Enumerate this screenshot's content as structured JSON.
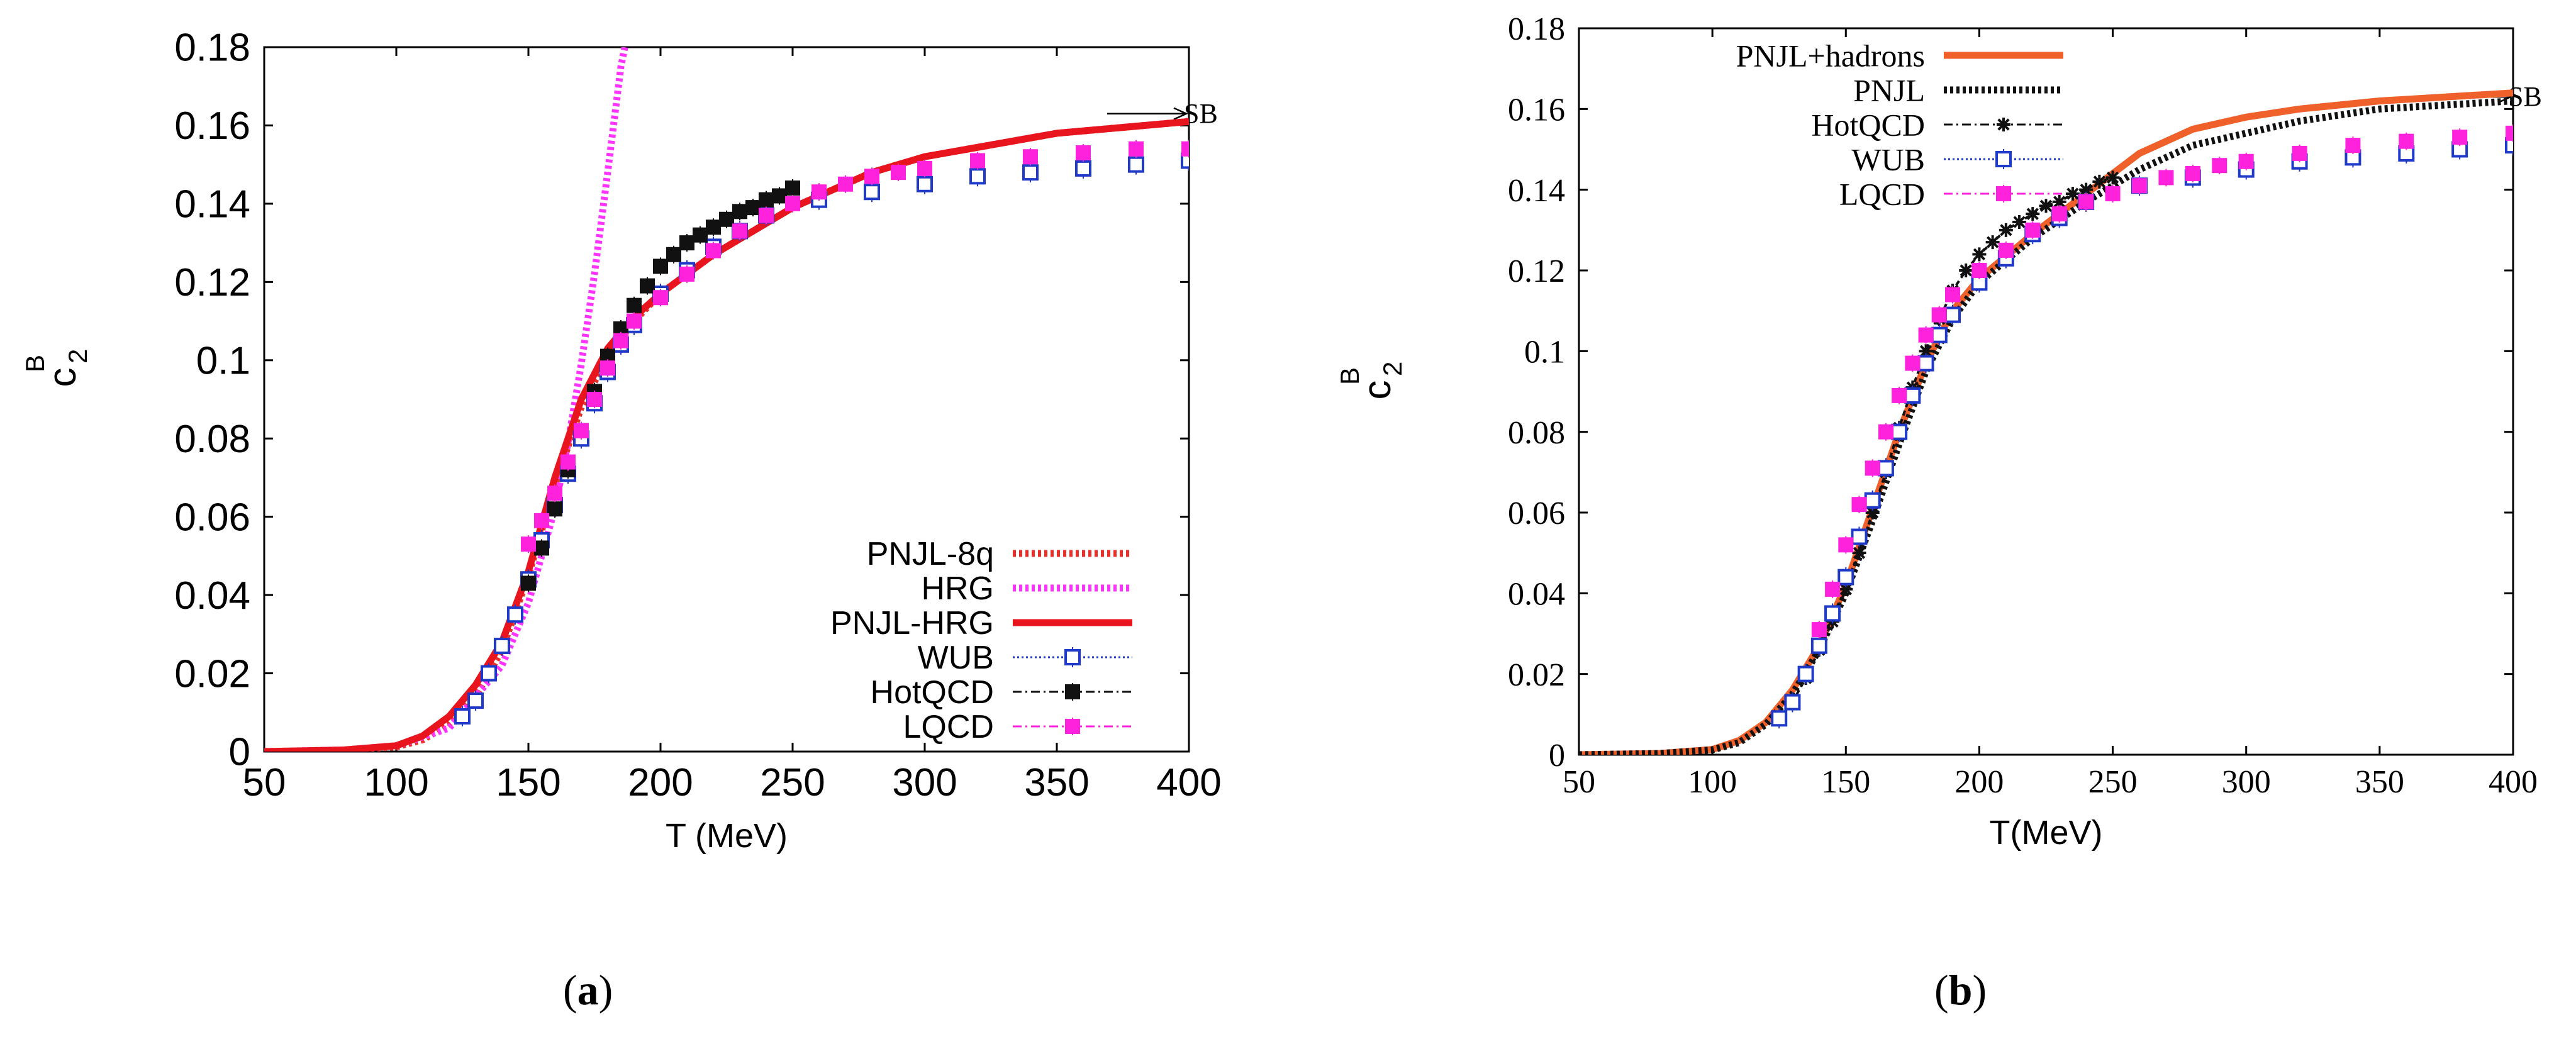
{
  "captions": {
    "a": "a",
    "b": "b",
    "open": "(",
    "close": ")"
  },
  "chart_data": [
    {
      "id": "a",
      "type": "line",
      "title": "",
      "xlabel": "T (MeV)",
      "ylabel_main": "c",
      "ylabel_sub": "2",
      "ylabel_sup": "B",
      "xlim": [
        50,
        400
      ],
      "ylim": [
        0,
        0.18
      ],
      "xticks": [
        50,
        100,
        150,
        200,
        250,
        300,
        350,
        400
      ],
      "yticks": [
        0,
        0.02,
        0.04,
        0.06,
        0.08,
        0.1,
        0.12,
        0.14,
        0.16,
        0.18
      ],
      "ytick_labels": [
        "0",
        "0.02",
        "0.04",
        "0.06",
        "0.08",
        "0.1",
        "0.12",
        "0.14",
        "0.16",
        "0.18"
      ],
      "legend_position": "bottom-right",
      "annotation": {
        "text": "SB",
        "x": 400,
        "y": 0.163
      },
      "series": [
        {
          "name": "PNJL-8q",
          "kind": "line",
          "style": "dotted-thick",
          "color": "#e8312a",
          "x": [
            50,
            80,
            100,
            110,
            120,
            130,
            140,
            150,
            160,
            170,
            180,
            190,
            200,
            220,
            250,
            280,
            300,
            350,
            400
          ],
          "y": [
            0,
            0.0003,
            0.0012,
            0.003,
            0.007,
            0.014,
            0.026,
            0.045,
            0.068,
            0.088,
            0.101,
            0.11,
            0.117,
            0.127,
            0.139,
            0.148,
            0.152,
            0.158,
            0.161
          ]
        },
        {
          "name": "HRG",
          "kind": "line",
          "style": "dotted-thick",
          "color": "#ff33ff",
          "x": [
            50,
            80,
            100,
            120,
            140,
            150,
            160,
            165,
            170,
            175,
            180,
            185,
            188
          ],
          "y": [
            0,
            0.0004,
            0.0015,
            0.006,
            0.022,
            0.038,
            0.062,
            0.079,
            0.099,
            0.122,
            0.148,
            0.175,
            0.185
          ]
        },
        {
          "name": "PNJL-HRG",
          "kind": "line",
          "style": "solid",
          "color": "#e8151e",
          "x": [
            50,
            80,
            100,
            110,
            120,
            130,
            140,
            150,
            155,
            160,
            170,
            180,
            190,
            200,
            220,
            250,
            280,
            300,
            350,
            400
          ],
          "y": [
            0,
            0.0004,
            0.0015,
            0.004,
            0.009,
            0.017,
            0.028,
            0.046,
            0.058,
            0.07,
            0.09,
            0.103,
            0.111,
            0.117,
            0.127,
            0.139,
            0.148,
            0.152,
            0.158,
            0.161
          ]
        },
        {
          "name": "WUB",
          "kind": "markers",
          "marker": "open-square",
          "color": "#1f3ac8",
          "x": [
            125,
            130,
            135,
            140,
            145,
            150,
            155,
            160,
            165,
            170,
            175,
            180,
            185,
            190,
            200,
            210,
            220,
            230,
            240,
            260,
            280,
            300,
            320,
            340,
            360,
            380,
            400
          ],
          "y": [
            0.009,
            0.013,
            0.02,
            0.027,
            0.035,
            0.044,
            0.054,
            0.063,
            0.071,
            0.08,
            0.089,
            0.097,
            0.104,
            0.109,
            0.117,
            0.123,
            0.129,
            0.133,
            0.137,
            0.141,
            0.143,
            0.145,
            0.147,
            0.148,
            0.149,
            0.15,
            0.151
          ]
        },
        {
          "name": "HotQCD",
          "kind": "markers",
          "marker": "filled-square",
          "color": "#111111",
          "x": [
            150,
            155,
            160,
            165,
            170,
            175,
            180,
            185,
            190,
            195,
            200,
            205,
            210,
            215,
            220,
            225,
            230,
            235,
            240,
            245,
            250
          ],
          "y": [
            0.043,
            0.052,
            0.062,
            0.072,
            0.082,
            0.092,
            0.101,
            0.108,
            0.114,
            0.119,
            0.124,
            0.127,
            0.13,
            0.132,
            0.134,
            0.136,
            0.138,
            0.139,
            0.141,
            0.142,
            0.144
          ]
        },
        {
          "name": "LQCD",
          "kind": "markers",
          "marker": "filled-square",
          "color": "#ff22dd",
          "x": [
            150,
            155,
            160,
            165,
            170,
            175,
            180,
            185,
            190,
            200,
            210,
            220,
            230,
            240,
            250,
            260,
            270,
            280,
            290,
            300,
            320,
            340,
            360,
            380,
            400
          ],
          "y": [
            0.053,
            0.059,
            0.066,
            0.074,
            0.082,
            0.09,
            0.098,
            0.105,
            0.11,
            0.116,
            0.122,
            0.128,
            0.133,
            0.137,
            0.14,
            0.143,
            0.145,
            0.147,
            0.148,
            0.149,
            0.151,
            0.152,
            0.153,
            0.154,
            0.154
          ]
        }
      ]
    },
    {
      "id": "b",
      "type": "line",
      "title": "",
      "xlabel": "T(MeV)",
      "ylabel_main": "c",
      "ylabel_sub": "2",
      "ylabel_sup": "B",
      "xlim": [
        50,
        400
      ],
      "ylim": [
        0,
        0.18
      ],
      "xticks": [
        50,
        100,
        150,
        200,
        250,
        300,
        350,
        400
      ],
      "yticks": [
        0,
        0.02,
        0.04,
        0.06,
        0.08,
        0.1,
        0.12,
        0.14,
        0.16,
        0.18
      ],
      "ytick_labels": [
        "0",
        "0.02",
        "0.04",
        "0.06",
        "0.08",
        "0.1",
        "0.12",
        "0.14",
        "0.16",
        "0.18"
      ],
      "legend_position": "top-left",
      "annotation": {
        "text": "SB",
        "x": 400,
        "y": 0.163
      },
      "series": [
        {
          "name": "PNJL+hadrons",
          "kind": "line",
          "style": "solid",
          "color": "#f0602a",
          "x": [
            50,
            80,
            100,
            110,
            120,
            130,
            140,
            150,
            160,
            170,
            180,
            190,
            200,
            220,
            240,
            250,
            260,
            280,
            300,
            320,
            350,
            400
          ],
          "y": [
            0,
            0.0003,
            0.0013,
            0.0035,
            0.008,
            0.016,
            0.027,
            0.042,
            0.061,
            0.08,
            0.097,
            0.11,
            0.118,
            0.129,
            0.139,
            0.144,
            0.149,
            0.155,
            0.158,
            0.16,
            0.162,
            0.164
          ]
        },
        {
          "name": "PNJL",
          "kind": "line",
          "style": "dotted-thick",
          "color": "#111111",
          "x": [
            50,
            80,
            100,
            110,
            120,
            130,
            140,
            150,
            160,
            170,
            180,
            190,
            200,
            220,
            240,
            250,
            260,
            280,
            300,
            320,
            350,
            400
          ],
          "y": [
            0,
            0.0003,
            0.0012,
            0.003,
            0.0075,
            0.015,
            0.026,
            0.04,
            0.058,
            0.077,
            0.095,
            0.108,
            0.117,
            0.128,
            0.137,
            0.141,
            0.145,
            0.151,
            0.154,
            0.157,
            0.16,
            0.162
          ]
        },
        {
          "name": "HotQCD",
          "kind": "markers-line",
          "marker": "star",
          "color": "#111111",
          "x": [
            130,
            135,
            140,
            145,
            150,
            155,
            160,
            165,
            170,
            175,
            180,
            185,
            190,
            195,
            200,
            205,
            210,
            215,
            220,
            225,
            230,
            235,
            240,
            245,
            250
          ],
          "y": [
            0.013,
            0.019,
            0.026,
            0.033,
            0.041,
            0.05,
            0.06,
            0.07,
            0.081,
            0.091,
            0.1,
            0.108,
            0.115,
            0.12,
            0.124,
            0.127,
            0.13,
            0.132,
            0.134,
            0.136,
            0.137,
            0.139,
            0.14,
            0.142,
            0.143
          ]
        },
        {
          "name": "WUB",
          "kind": "markers",
          "marker": "open-square",
          "color": "#1f3ac8",
          "x": [
            125,
            130,
            135,
            140,
            145,
            150,
            155,
            160,
            165,
            170,
            175,
            180,
            185,
            190,
            200,
            210,
            220,
            230,
            240,
            260,
            280,
            300,
            320,
            340,
            360,
            380,
            400
          ],
          "y": [
            0.009,
            0.013,
            0.02,
            0.027,
            0.035,
            0.044,
            0.054,
            0.063,
            0.071,
            0.08,
            0.089,
            0.097,
            0.104,
            0.109,
            0.117,
            0.123,
            0.129,
            0.133,
            0.137,
            0.141,
            0.143,
            0.145,
            0.147,
            0.148,
            0.149,
            0.15,
            0.151
          ]
        },
        {
          "name": "LQCD",
          "kind": "markers",
          "marker": "filled-square",
          "color": "#ff22dd",
          "x": [
            140,
            145,
            150,
            155,
            160,
            165,
            170,
            175,
            180,
            185,
            190,
            200,
            210,
            220,
            230,
            240,
            250,
            260,
            270,
            280,
            290,
            300,
            320,
            340,
            360,
            380,
            400
          ],
          "y": [
            0.031,
            0.041,
            0.052,
            0.062,
            0.071,
            0.08,
            0.089,
            0.097,
            0.104,
            0.109,
            0.114,
            0.12,
            0.125,
            0.13,
            0.134,
            0.137,
            0.139,
            0.141,
            0.143,
            0.144,
            0.146,
            0.147,
            0.149,
            0.151,
            0.152,
            0.153,
            0.154
          ]
        }
      ]
    }
  ]
}
